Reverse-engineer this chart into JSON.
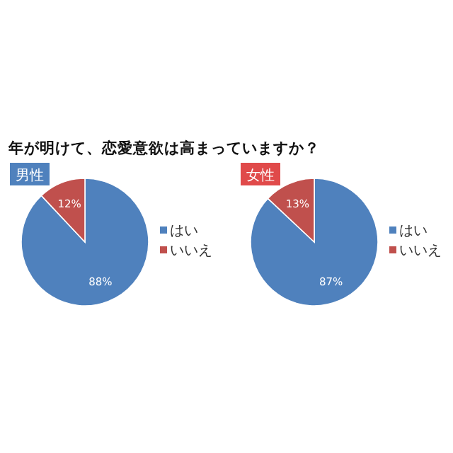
{
  "chart_data": [
    {
      "type": "pie",
      "title": "年が明けて、恋愛意欲は高まっていますか？",
      "subtitle": "男性",
      "categories": [
        "はい",
        "いいえ"
      ],
      "values": [
        88,
        12
      ],
      "colors": [
        "#4f81bd",
        "#c0504d"
      ],
      "value_labels": [
        "88%",
        "12%"
      ],
      "legend": "right"
    },
    {
      "type": "pie",
      "subtitle": "女性",
      "categories": [
        "はい",
        "いいえ"
      ],
      "values": [
        87,
        13
      ],
      "colors": [
        "#4f81bd",
        "#c0504d"
      ],
      "value_labels": [
        "87%",
        "13%"
      ],
      "legend": "right"
    }
  ]
}
